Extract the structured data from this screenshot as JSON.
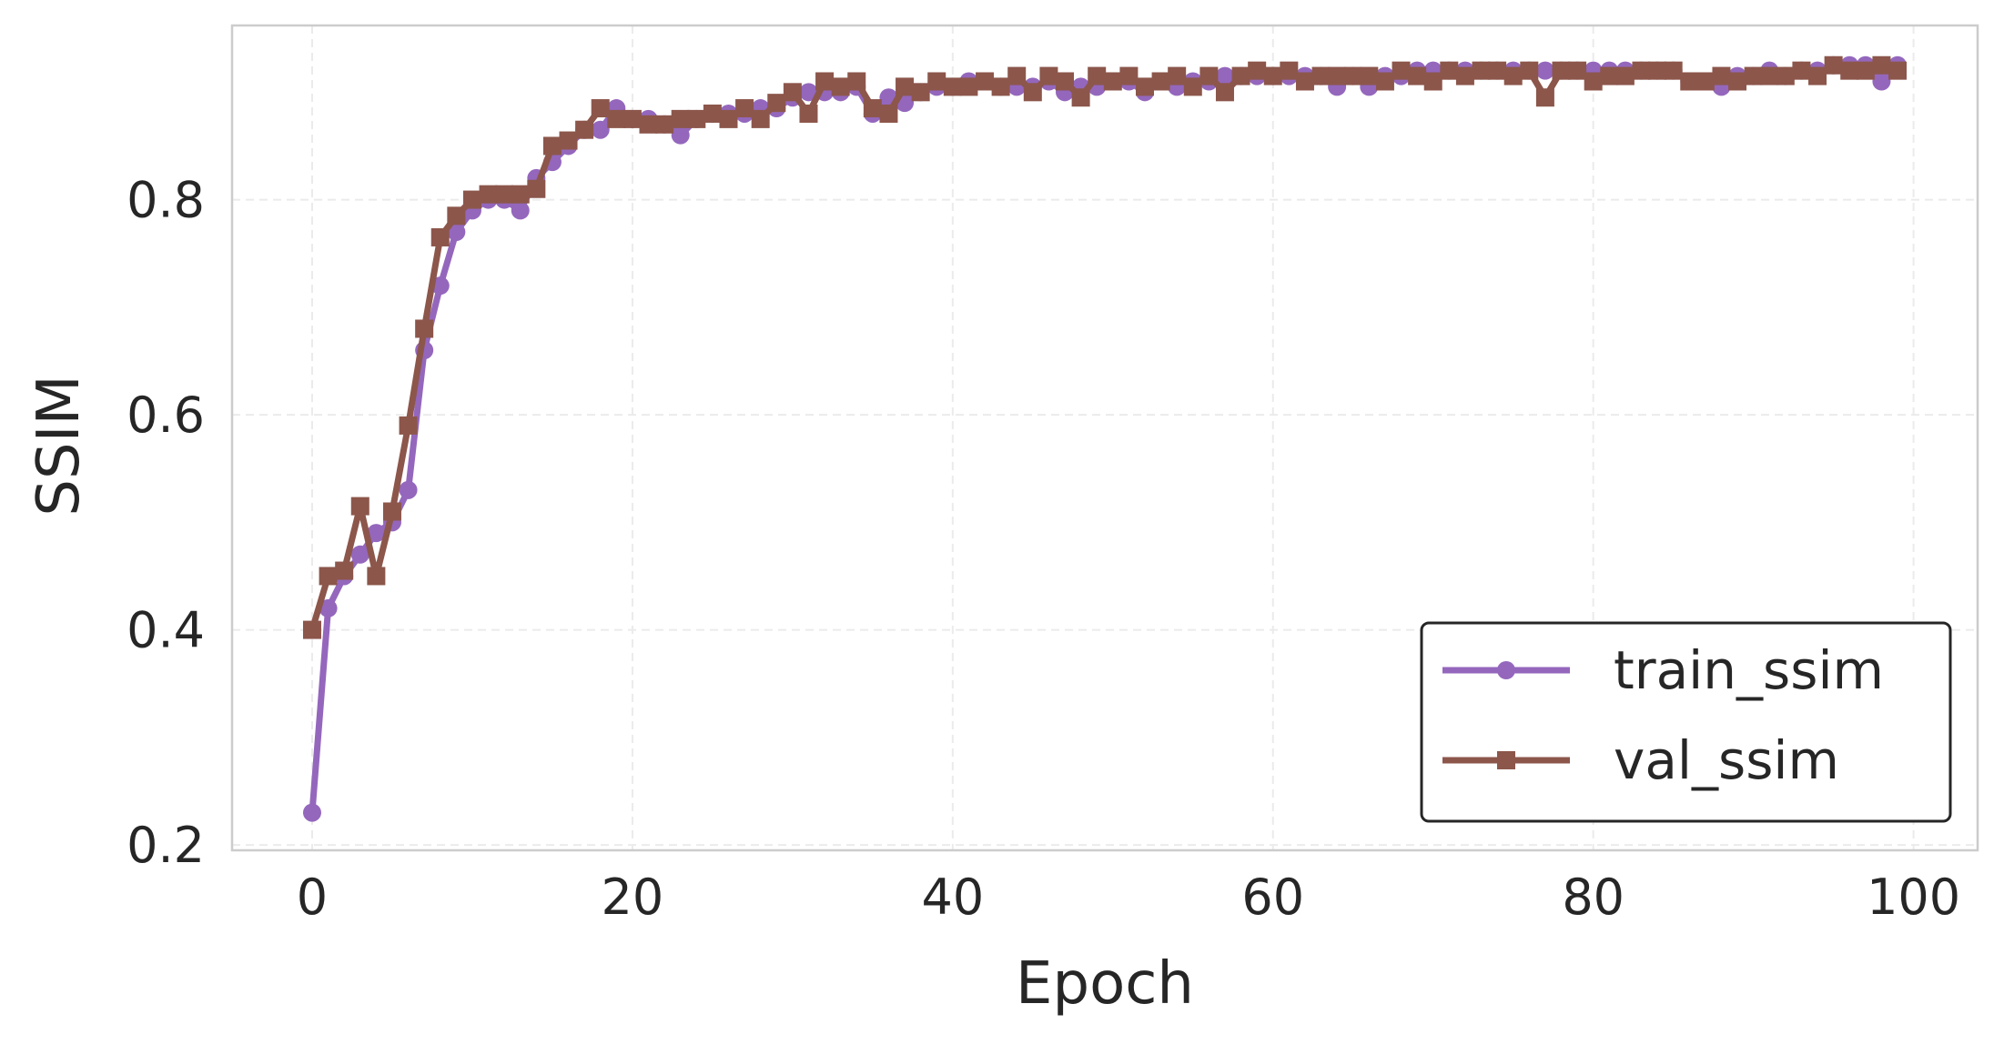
{
  "chart_data": {
    "type": "line",
    "title": "",
    "xlabel": "Epoch",
    "ylabel": "SSIM",
    "xlim": [
      -5,
      104
    ],
    "ylim": [
      0.195,
      0.962
    ],
    "xticks": [
      0,
      20,
      40,
      60,
      80,
      100
    ],
    "yticks": [
      0.2,
      0.4,
      0.6,
      0.8
    ],
    "xtick_labels": [
      "0",
      "20",
      "40",
      "60",
      "80",
      "100"
    ],
    "ytick_labels": [
      "0.2",
      "0.4",
      "0.6",
      "0.8"
    ],
    "grid": true,
    "legend_position": "bottom-right",
    "x": [
      0,
      1,
      2,
      3,
      4,
      5,
      6,
      7,
      8,
      9,
      10,
      11,
      12,
      13,
      14,
      15,
      16,
      17,
      18,
      19,
      20,
      21,
      22,
      23,
      24,
      25,
      26,
      27,
      28,
      29,
      30,
      31,
      32,
      33,
      34,
      35,
      36,
      37,
      38,
      39,
      40,
      41,
      42,
      43,
      44,
      45,
      46,
      47,
      48,
      49,
      50,
      51,
      52,
      53,
      54,
      55,
      56,
      57,
      58,
      59,
      60,
      61,
      62,
      63,
      64,
      65,
      66,
      67,
      68,
      69,
      70,
      71,
      72,
      73,
      74,
      75,
      76,
      77,
      78,
      79,
      80,
      81,
      82,
      83,
      84,
      85,
      86,
      87,
      88,
      89,
      90,
      91,
      92,
      93,
      94,
      95,
      96,
      97,
      98,
      99
    ],
    "series": [
      {
        "name": "train_ssim",
        "color": "#9467bd",
        "marker": "circle",
        "values": [
          0.23,
          0.42,
          0.45,
          0.47,
          0.49,
          0.5,
          0.53,
          0.66,
          0.72,
          0.77,
          0.79,
          0.8,
          0.8,
          0.79,
          0.82,
          0.835,
          0.85,
          0.865,
          0.865,
          0.885,
          0.875,
          0.875,
          0.87,
          0.86,
          0.875,
          0.88,
          0.88,
          0.88,
          0.885,
          0.885,
          0.895,
          0.9,
          0.9,
          0.9,
          0.905,
          0.88,
          0.895,
          0.89,
          0.9,
          0.905,
          0.905,
          0.91,
          0.91,
          0.905,
          0.905,
          0.905,
          0.91,
          0.9,
          0.905,
          0.905,
          0.91,
          0.91,
          0.9,
          0.91,
          0.905,
          0.91,
          0.91,
          0.915,
          0.915,
          0.915,
          0.915,
          0.915,
          0.915,
          0.915,
          0.905,
          0.915,
          0.905,
          0.915,
          0.915,
          0.92,
          0.92,
          0.92,
          0.92,
          0.92,
          0.92,
          0.92,
          0.92,
          0.92,
          0.92,
          0.92,
          0.92,
          0.92,
          0.92,
          0.92,
          0.92,
          0.92,
          0.91,
          0.91,
          0.905,
          0.915,
          0.915,
          0.92,
          0.915,
          0.92,
          0.92,
          0.925,
          0.925,
          0.925,
          0.91,
          0.925
        ]
      },
      {
        "name": "val_ssim",
        "color": "#8c564b",
        "marker": "square",
        "values": [
          0.4,
          0.45,
          0.455,
          0.515,
          0.45,
          0.51,
          0.59,
          0.68,
          0.765,
          0.785,
          0.8,
          0.805,
          0.805,
          0.805,
          0.81,
          0.85,
          0.855,
          0.865,
          0.885,
          0.875,
          0.875,
          0.87,
          0.87,
          0.875,
          0.875,
          0.88,
          0.875,
          0.885,
          0.875,
          0.89,
          0.9,
          0.88,
          0.91,
          0.905,
          0.91,
          0.885,
          0.88,
          0.905,
          0.9,
          0.91,
          0.905,
          0.905,
          0.91,
          0.905,
          0.915,
          0.9,
          0.915,
          0.91,
          0.895,
          0.915,
          0.91,
          0.915,
          0.905,
          0.91,
          0.915,
          0.905,
          0.915,
          0.9,
          0.915,
          0.92,
          0.915,
          0.92,
          0.91,
          0.915,
          0.915,
          0.915,
          0.915,
          0.91,
          0.92,
          0.915,
          0.91,
          0.92,
          0.915,
          0.92,
          0.92,
          0.915,
          0.92,
          0.895,
          0.92,
          0.92,
          0.91,
          0.915,
          0.915,
          0.92,
          0.92,
          0.92,
          0.91,
          0.91,
          0.915,
          0.91,
          0.915,
          0.915,
          0.915,
          0.92,
          0.915,
          0.925,
          0.92,
          0.92,
          0.925,
          0.92
        ]
      }
    ]
  }
}
